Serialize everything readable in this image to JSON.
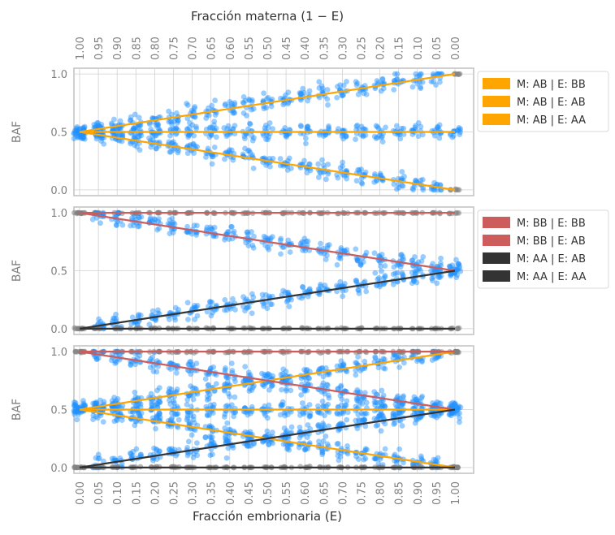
{
  "figure": {
    "top_axis_label": "Fracción materna (1 − E)",
    "bottom_axis_label": "Fracción embrionaria (E)"
  },
  "colors": {
    "orange": "#ffa500",
    "red": "#cd5c5c",
    "dark": "#333333",
    "blue_points": "#1e90ff",
    "gray_points": "#808080",
    "grid": "#d0d0d0",
    "frame": "#c0c0c0"
  },
  "chart_data": [
    {
      "type": "scatter",
      "xlabel": "",
      "ylabel": "BAF",
      "x": [
        0.0,
        0.05,
        0.1,
        0.15,
        0.2,
        0.25,
        0.3,
        0.35,
        0.4,
        0.45,
        0.5,
        0.55,
        0.6,
        0.65,
        0.7,
        0.75,
        0.8,
        0.85,
        0.9,
        0.95,
        1.0
      ],
      "top_ticks": [
        "1.00",
        "0.95",
        "0.90",
        "0.85",
        "0.80",
        "0.75",
        "0.70",
        "0.65",
        "0.60",
        "0.55",
        "0.50",
        "0.45",
        "0.40",
        "0.35",
        "0.30",
        "0.25",
        "0.20",
        "0.15",
        "0.10",
        "0.05",
        "0.00"
      ],
      "yticks": [
        "0.0",
        "0.5",
        "1.0"
      ],
      "ylim": [
        -0.05,
        1.05
      ],
      "grid": true,
      "legend_position": "right-upper",
      "series": [
        {
          "name": "M: AB | E: BB",
          "color": "orange",
          "line": [
            [
              0,
              0.5
            ],
            [
              1,
              1.0
            ]
          ]
        },
        {
          "name": "M: AB | E: AB",
          "color": "orange",
          "line": [
            [
              0,
              0.5
            ],
            [
              1,
              0.5
            ]
          ]
        },
        {
          "name": "M: AB | E: AA",
          "color": "orange",
          "line": [
            [
              0,
              0.5
            ],
            [
              1,
              0.0
            ]
          ]
        }
      ]
    },
    {
      "type": "scatter",
      "xlabel": "",
      "ylabel": "BAF",
      "x": [
        0.0,
        0.05,
        0.1,
        0.15,
        0.2,
        0.25,
        0.3,
        0.35,
        0.4,
        0.45,
        0.5,
        0.55,
        0.6,
        0.65,
        0.7,
        0.75,
        0.8,
        0.85,
        0.9,
        0.95,
        1.0
      ],
      "yticks": [
        "0.0",
        "0.5",
        "1.0"
      ],
      "ylim": [
        -0.05,
        1.05
      ],
      "grid": true,
      "legend_position": "right-middle",
      "series": [
        {
          "name": "M: BB | E: BB",
          "color": "red",
          "line": [
            [
              0,
              1.0
            ],
            [
              1,
              1.0
            ]
          ]
        },
        {
          "name": "M: BB | E: AB",
          "color": "red",
          "line": [
            [
              0,
              1.0
            ],
            [
              1,
              0.5
            ]
          ]
        },
        {
          "name": "M: AA | E: AB",
          "color": "dark",
          "line": [
            [
              0,
              0.0
            ],
            [
              1,
              0.5
            ]
          ]
        },
        {
          "name": "M: AA | E: AA",
          "color": "dark",
          "line": [
            [
              0,
              0.0
            ],
            [
              1,
              0.0
            ]
          ]
        }
      ]
    },
    {
      "type": "scatter",
      "xlabel": "Fracción embrionaria (E)",
      "ylabel": "BAF",
      "x": [
        0.0,
        0.05,
        0.1,
        0.15,
        0.2,
        0.25,
        0.3,
        0.35,
        0.4,
        0.45,
        0.5,
        0.55,
        0.6,
        0.65,
        0.7,
        0.75,
        0.8,
        0.85,
        0.9,
        0.95,
        1.0
      ],
      "bottom_ticks": [
        "0.00",
        "0.05",
        "0.10",
        "0.15",
        "0.20",
        "0.25",
        "0.30",
        "0.35",
        "0.40",
        "0.45",
        "0.50",
        "0.55",
        "0.60",
        "0.65",
        "0.70",
        "0.75",
        "0.80",
        "0.85",
        "0.90",
        "0.95",
        "1.00"
      ],
      "yticks": [
        "0.0",
        "0.5",
        "1.0"
      ],
      "ylim": [
        -0.05,
        1.05
      ],
      "grid": true,
      "series": [
        {
          "color": "orange",
          "line": [
            [
              0,
              0.5
            ],
            [
              1,
              1.0
            ]
          ]
        },
        {
          "color": "orange",
          "line": [
            [
              0,
              0.5
            ],
            [
              1,
              0.5
            ]
          ]
        },
        {
          "color": "orange",
          "line": [
            [
              0,
              0.5
            ],
            [
              1,
              0.0
            ]
          ]
        },
        {
          "color": "red",
          "line": [
            [
              0,
              1.0
            ],
            [
              1,
              1.0
            ]
          ]
        },
        {
          "color": "red",
          "line": [
            [
              0,
              1.0
            ],
            [
              1,
              0.5
            ]
          ]
        },
        {
          "color": "dark",
          "line": [
            [
              0,
              0.0
            ],
            [
              1,
              0.5
            ]
          ]
        },
        {
          "color": "dark",
          "line": [
            [
              0,
              0.0
            ],
            [
              1,
              0.0
            ]
          ]
        }
      ]
    }
  ]
}
